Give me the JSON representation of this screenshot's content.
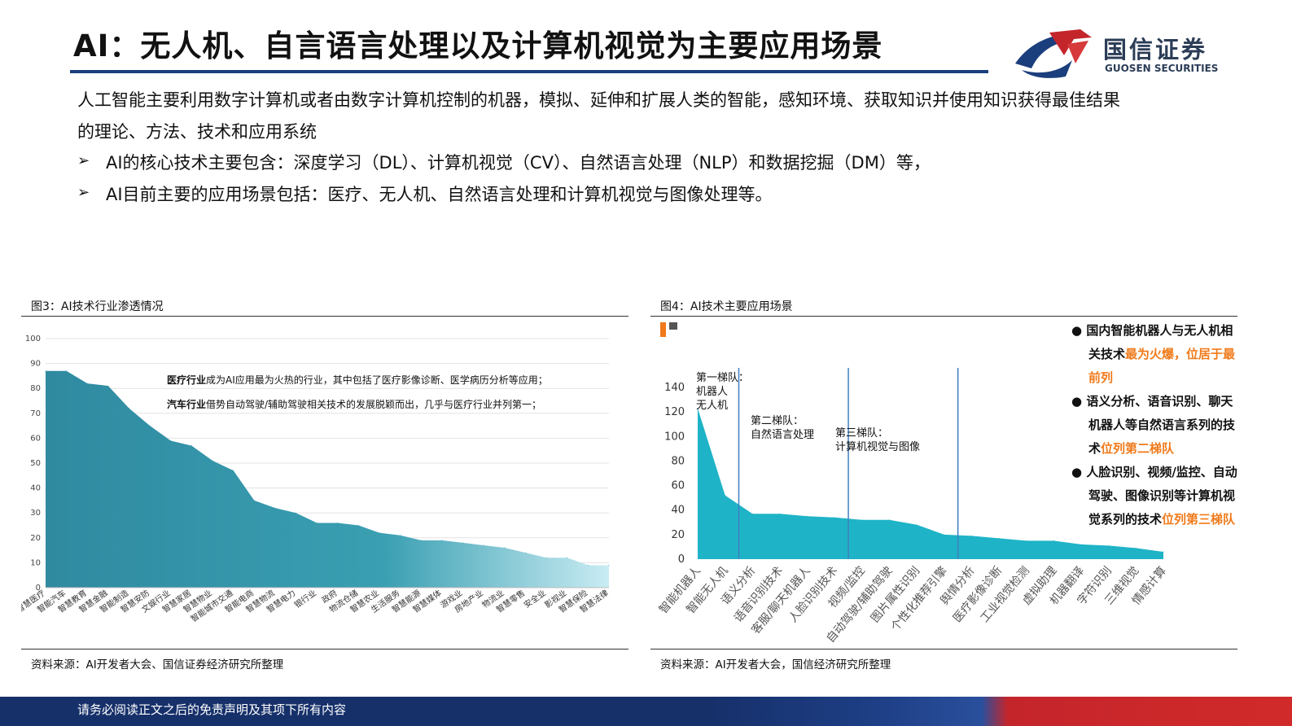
{
  "header": {
    "title": "AI：无人机、自言语言处理以及计算机视觉为主要应用场景",
    "logo_name": "国信证券",
    "logo_sub": "GUOSEN SECURITIES",
    "colors": {
      "navy": "#1b3e7d",
      "red": "#c4252b"
    }
  },
  "intro": {
    "line1": "人工智能主要利用数字计算机或者由数字计算机控制的机器，模拟、延伸和扩展人类的智能，感知环境、获取知识并使用知识获得最佳结果",
    "line2": "的理论、方法、技术和应用系统",
    "bullet_mark": "➢",
    "bullets": [
      "AI的核心技术主要包含：深度学习（DL）、计算机视觉（CV）、自然语言处理（NLP）和数据挖掘（DM）等，",
      "AI目前主要的应用场景包括：医疗、无人机、自然语言处理和计算机视觉与图像处理等。"
    ]
  },
  "figure3": {
    "title": "图3：AI技术行业渗透情况",
    "source": "资料来源：AI开发者大会、国信证券经济研究所整理",
    "annotation1_bold": "医疗行业",
    "annotation1_rest": "成为AI应用最为火热的行业，其中包括了医疗影像诊断、医学病历分析等应用；",
    "annotation2_bold": "汽车行业",
    "annotation2_rest": "借势自动驾驶/辅助驾驶相关技术的发展脱颖而出，几乎与医疗行业并列第一；"
  },
  "figure4": {
    "title": "图4：AI技术主要应用场景",
    "source": "资料来源：AI开发者大会，国信经济研究所整理",
    "tiers": [
      {
        "name": "第一梯队：",
        "lines": [
          "机器人",
          "无人机"
        ]
      },
      {
        "name": "第二梯队：",
        "lines": [
          "自然语言处理"
        ]
      },
      {
        "name": "第三梯队：",
        "lines": [
          "计算机视觉与图像"
        ]
      }
    ],
    "side_points": [
      {
        "bullet": "●",
        "parts": [
          {
            "t": "国内智能机器人与无人机相",
            "hl": false
          }
        ],
        "cont": [
          [
            {
              "t": "关技术",
              "hl": false
            },
            {
              "t": "最为火爆，位居于最",
              "hl": true
            }
          ],
          [
            {
              "t": "前列",
              "hl": true
            }
          ]
        ]
      },
      {
        "bullet": "●",
        "parts": [
          {
            "t": "语义分析、语音识别、聊天",
            "hl": false
          }
        ],
        "cont": [
          [
            {
              "t": "机器人等自然语言系列的技",
              "hl": false
            }
          ],
          [
            {
              "t": "术",
              "hl": false
            },
            {
              "t": "位列第二梯队",
              "hl": true
            }
          ]
        ]
      },
      {
        "bullet": "●",
        "parts": [
          {
            "t": "人脸识别、视频/监控、自动",
            "hl": false
          }
        ],
        "cont": [
          [
            {
              "t": "驾驶、图像识别等计算机视",
              "hl": false
            }
          ],
          [
            {
              "t": "觉系列的技术",
              "hl": false
            },
            {
              "t": "位列第三梯队",
              "hl": true
            }
          ]
        ]
      }
    ]
  },
  "footer": {
    "disclaimer": "请务必阅读正文之后的免责声明及其项下所有内容"
  },
  "chart_data": [
    {
      "type": "area",
      "title": "",
      "ylim": [
        0,
        100
      ],
      "yticks": [
        0,
        10,
        20,
        30,
        40,
        50,
        60,
        70,
        80,
        90,
        100
      ],
      "grid": true,
      "color": "#3a9fb2",
      "categories": [
        "智慧医疗",
        "智能汽车",
        "智慧教育",
        "智慧金融",
        "智能制造",
        "智慧安防",
        "文娱行业",
        "智慧家居",
        "智慧物业",
        "智能城市交通",
        "智能电商",
        "智慧物流",
        "智慧电力",
        "银行业",
        "政府",
        "物流仓储",
        "智慧农业",
        "生活服务",
        "智慧能源",
        "智慧媒体",
        "游戏业",
        "房地产业",
        "物流业",
        "智慧零售",
        "安全业",
        "影视业",
        "智慧保险",
        "智慧法律"
      ],
      "values": [
        87,
        87,
        82,
        81,
        72,
        65,
        59,
        57,
        51,
        47,
        35,
        32,
        30,
        26,
        26,
        25,
        22,
        21,
        19,
        19,
        18,
        17,
        16,
        14,
        12,
        12,
        9,
        9
      ]
    },
    {
      "type": "area",
      "title": "",
      "ylim": [
        0,
        140
      ],
      "yticks": [
        0,
        20,
        40,
        60,
        80,
        100,
        120,
        140
      ],
      "grid": false,
      "color": "#1fb3c7",
      "categories": [
        "智能机器人",
        "智能无人机",
        "语义分析",
        "语音识别技术",
        "客服/聊天机器人",
        "人脸识别技术",
        "视频/监控",
        "自动驾驶/辅助驾驶",
        "图片属性识别",
        "个性化推荐引擎",
        "舆情分析",
        "医疗影像诊断",
        "工业视觉检测",
        "虚拟助理",
        "机器翻译",
        "字符识别",
        "三维视觉",
        "情感计算"
      ],
      "values": [
        123,
        52,
        37,
        37,
        35,
        34,
        32,
        32,
        28,
        20,
        19,
        17,
        15,
        15,
        12,
        11,
        9,
        6
      ]
    }
  ]
}
